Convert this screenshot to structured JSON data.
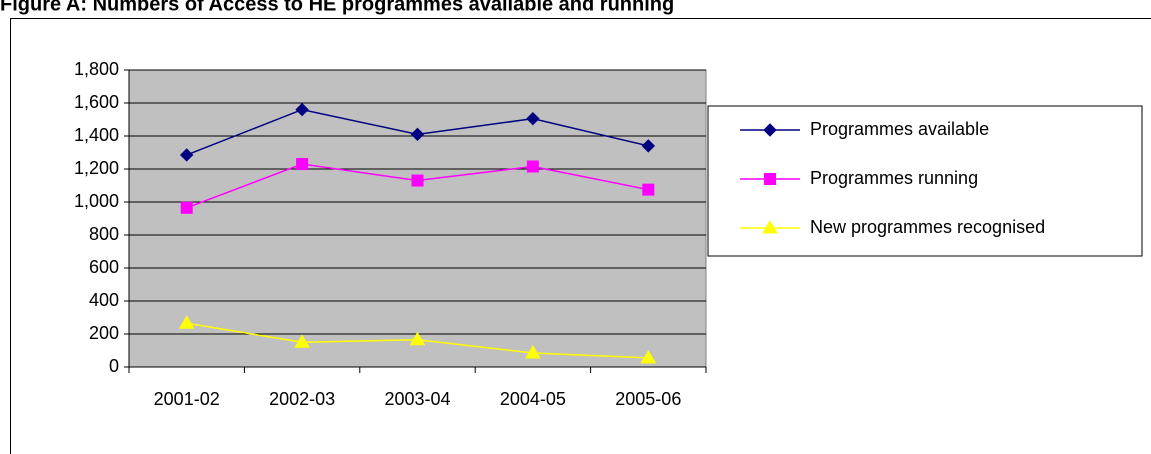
{
  "chart_data": {
    "type": "line",
    "title": "Figure A: Numbers of Access to HE programmes available and running",
    "categories": [
      "2001-02",
      "2002-03",
      "2003-04",
      "2004-05",
      "2005-06"
    ],
    "series": [
      {
        "name": "Programmes available",
        "color": "#000080",
        "marker": "diamond",
        "values": [
          1285,
          1560,
          1410,
          1505,
          1340
        ]
      },
      {
        "name": "Programmes running",
        "color": "#ff00ff",
        "marker": "square",
        "values": [
          965,
          1230,
          1130,
          1215,
          1075
        ]
      },
      {
        "name": "New programmes recognised",
        "color": "#ffff00",
        "marker": "triangle",
        "values": [
          265,
          150,
          165,
          85,
          55
        ]
      }
    ],
    "ylim": [
      0,
      1800
    ],
    "yticks": [
      0,
      200,
      400,
      600,
      800,
      {
        "value": 1000,
        "label": "1,000"
      },
      {
        "value": 1200,
        "label": "1,200"
      },
      {
        "value": 1400,
        "label": "1,400"
      },
      {
        "value": 1600,
        "label": "1,600"
      },
      {
        "value": 1800,
        "label": "1,800"
      }
    ],
    "grid": true,
    "legend": "right",
    "plot_background": "#c0c0c0"
  }
}
